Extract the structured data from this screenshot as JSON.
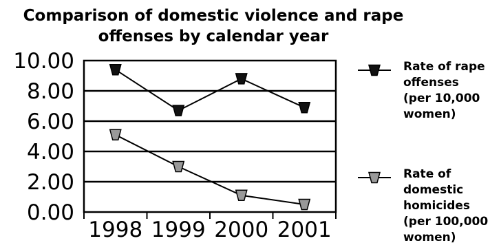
{
  "chart_data": {
    "type": "line",
    "title_lines": [
      "Comparison of domestic violence and rape",
      "offenses by calendar year"
    ],
    "categories": [
      "1998",
      "1999",
      "2000",
      "2001"
    ],
    "y_tick_labels": [
      "10.00",
      "8.00",
      "6.00",
      "4.00",
      "2.00",
      "0.00"
    ],
    "ylim": [
      0,
      10
    ],
    "grid": true,
    "legend_position": "right",
    "series": [
      {
        "name_lines": [
          "Rate of rape",
          "offenses",
          "(per 10,000",
          "women)"
        ],
        "values": [
          9.4,
          6.7,
          8.8,
          6.9
        ],
        "color": "#111111"
      },
      {
        "name_lines": [
          "Rate of",
          "domestic",
          "homicides",
          "(per 100,000",
          "women)"
        ],
        "values": [
          5.1,
          3.0,
          1.1,
          0.5
        ],
        "color": "#999999"
      }
    ]
  }
}
